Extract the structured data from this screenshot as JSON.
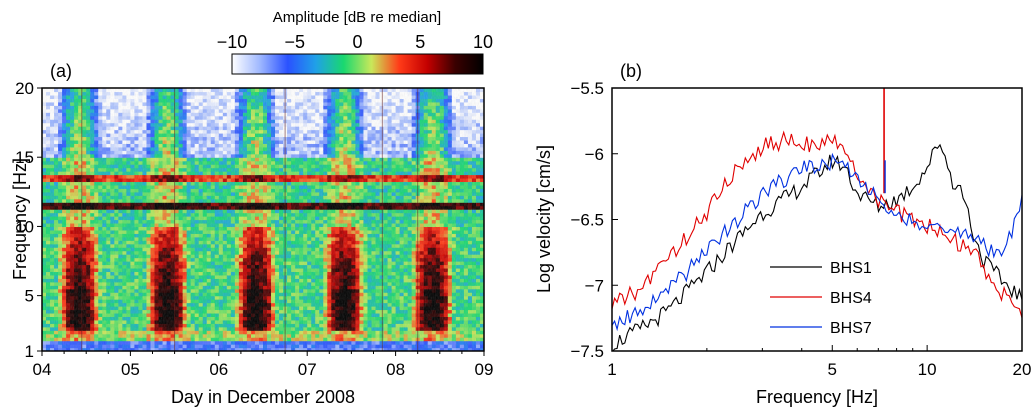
{
  "chart_data": [
    {
      "type": "heatmap",
      "panel_label": "(a)",
      "xlabel": "Day in December 2008",
      "ylabel": "Frequency [Hz]",
      "x_ticks": [
        "04",
        "05",
        "06",
        "07",
        "08",
        "09"
      ],
      "x_range": [
        4,
        9
      ],
      "y_ticks": [
        1,
        5,
        10,
        15,
        20
      ],
      "y_range": [
        1,
        20
      ],
      "colorbar": {
        "label": "Amplitude [dB re median]",
        "ticks": [
          -10,
          -5,
          0,
          5,
          10
        ],
        "range": [
          -10,
          10
        ],
        "colors": [
          "#ffffff",
          "#9fb8ff",
          "#2a52ff",
          "#20a0e8",
          "#19d86f",
          "#c9e85a",
          "#ff3a18",
          "#c40000",
          "#3a0000",
          "#000000"
        ]
      },
      "daily_cycle_bands_hz": {
        "night_quiet_high": [
          15,
          20
        ],
        "strong_lines": [
          11.5,
          13.5
        ],
        "day_energetic": [
          2,
          10
        ]
      }
    },
    {
      "type": "line",
      "panel_label": "(b)",
      "xlabel": "Frequency [Hz]",
      "ylabel": "Log velocity [cm/s]",
      "x_scale": "log",
      "x_range": [
        1,
        20
      ],
      "x_ticks": [
        1,
        5,
        10,
        20
      ],
      "y_range": [
        -7.5,
        -5.5
      ],
      "y_ticks": [
        -7.5,
        -7,
        -6.5,
        -6,
        -5.5
      ],
      "y_tick_labels": [
        "−7.5",
        "−7",
        "−6.5",
        "−6",
        "−5.5"
      ],
      "legend_position": "lower-center",
      "series": [
        {
          "name": "BHS1",
          "color": "#000000",
          "x": [
            1,
            1.2,
            1.5,
            2,
            2.5,
            3,
            3.5,
            4,
            4.5,
            5,
            5.5,
            6,
            7,
            8,
            9,
            10,
            11,
            12,
            13,
            14,
            15,
            17,
            19,
            20
          ],
          "y": [
            -7.45,
            -7.35,
            -7.2,
            -6.9,
            -6.65,
            -6.45,
            -6.35,
            -6.25,
            -6.15,
            -6.05,
            -6.1,
            -6.3,
            -6.4,
            -6.35,
            -6.25,
            -6.1,
            -5.9,
            -6.2,
            -6.3,
            -6.6,
            -6.8,
            -6.95,
            -7.05,
            -7.1
          ]
        },
        {
          "name": "BHS4",
          "color": "#e00000",
          "x": [
            1,
            1.2,
            1.5,
            2,
            2.5,
            3,
            3.5,
            4,
            4.5,
            5,
            5.5,
            6,
            7,
            8,
            9,
            10,
            11,
            12,
            13,
            14,
            15,
            17,
            19,
            20
          ],
          "y": [
            -7.15,
            -7.05,
            -6.8,
            -6.45,
            -6.1,
            -5.95,
            -5.9,
            -5.9,
            -5.95,
            -5.9,
            -6.0,
            -6.15,
            -6.35,
            -6.45,
            -6.5,
            -6.55,
            -6.6,
            -6.65,
            -6.7,
            -6.75,
            -6.85,
            -7.05,
            -7.15,
            -7.2
          ]
        },
        {
          "name": "BHS7",
          "color": "#0030e0",
          "x": [
            1,
            1.2,
            1.5,
            2,
            2.5,
            3,
            3.5,
            4,
            4.5,
            5,
            5.5,
            6,
            7,
            8,
            9,
            10,
            11,
            12,
            13,
            14,
            15,
            17,
            19,
            20
          ],
          "y": [
            -7.3,
            -7.2,
            -7.05,
            -6.75,
            -6.5,
            -6.3,
            -6.2,
            -6.1,
            -6.1,
            -6.05,
            -6.1,
            -6.2,
            -6.35,
            -6.45,
            -6.5,
            -6.55,
            -6.6,
            -6.6,
            -6.6,
            -6.65,
            -6.7,
            -6.75,
            -6.55,
            -6.3
          ]
        }
      ],
      "spike": {
        "x": 7.3,
        "y_top": -5.5,
        "y_base": -6.3
      }
    }
  ]
}
